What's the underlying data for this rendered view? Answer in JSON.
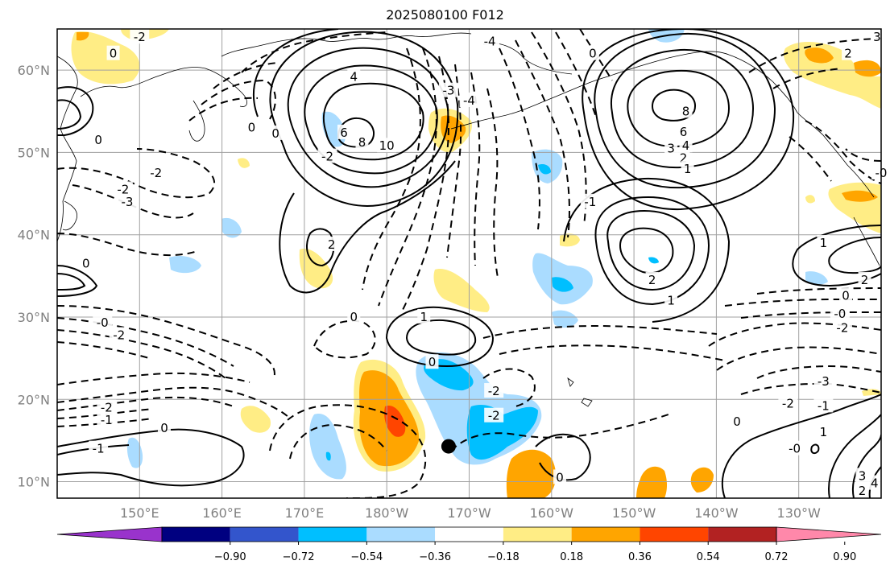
{
  "title": "2025080100 F012",
  "map": {
    "lat_labels": [
      "60°N",
      "50°N",
      "40°N",
      "30°N",
      "20°N",
      "10°N"
    ],
    "lon_labels": [
      "150°E",
      "160°E",
      "170°E",
      "180°W",
      "170°W",
      "160°W",
      "150°W",
      "140°W",
      "130°W"
    ],
    "lat_values": [
      60,
      50,
      40,
      30,
      20,
      10
    ],
    "lon_values": [
      150,
      160,
      170,
      180,
      190,
      200,
      210,
      220,
      230
    ],
    "lon_range": [
      140,
      240
    ],
    "lat_range": [
      8,
      65
    ],
    "grid": true,
    "marker": {
      "lon": 187.5,
      "lat": 14.3,
      "color": "#000000"
    }
  },
  "colorbar": {
    "ticks": [
      "−0.90",
      "−0.72",
      "−0.54",
      "−0.36",
      "−0.18",
      "0.18",
      "0.36",
      "0.54",
      "0.72",
      "0.90"
    ],
    "colors": [
      "#9933cc",
      "#000080",
      "#3355cc",
      "#00bfff",
      "#aadcff",
      "#ffffff",
      "#ffed85",
      "#ffa500",
      "#ff4500",
      "#b22222",
      "#ff88aa"
    ]
  },
  "contour_labels": [
    {
      "t": "4",
      "lon": 176.0,
      "lat": 59.2
    },
    {
      "t": "6",
      "lon": 174.8,
      "lat": 52.4
    },
    {
      "t": "8",
      "lon": 177.0,
      "lat": 51.2
    },
    {
      "t": "10",
      "lon": 180.0,
      "lat": 50.8
    },
    {
      "t": "0",
      "lon": 166.5,
      "lat": 52.3
    },
    {
      "t": "0",
      "lon": 163.6,
      "lat": 53.0
    },
    {
      "t": "2",
      "lon": 173.3,
      "lat": 38.8
    },
    {
      "t": "-2",
      "lon": 172.8,
      "lat": 49.5
    },
    {
      "t": "-3",
      "lon": 187.5,
      "lat": 57.5
    },
    {
      "t": "-4",
      "lon": 190.0,
      "lat": 56.3
    },
    {
      "t": "-4",
      "lon": 192.5,
      "lat": 63.5
    },
    {
      "t": "0",
      "lon": 205.0,
      "lat": 62.0
    },
    {
      "t": "8",
      "lon": 216.3,
      "lat": 55.0
    },
    {
      "t": "6",
      "lon": 216.0,
      "lat": 52.5
    },
    {
      "t": "4",
      "lon": 216.3,
      "lat": 50.8
    },
    {
      "t": "3",
      "lon": 214.5,
      "lat": 50.5
    },
    {
      "t": "2",
      "lon": 216.0,
      "lat": 49.3
    },
    {
      "t": "1",
      "lon": 216.5,
      "lat": 48.0
    },
    {
      "t": "2",
      "lon": 212.2,
      "lat": 34.5
    },
    {
      "t": "1",
      "lon": 214.5,
      "lat": 32.0
    },
    {
      "t": "1",
      "lon": 184.5,
      "lat": 30.0
    },
    {
      "t": "0",
      "lon": 176.0,
      "lat": 30.0
    },
    {
      "t": "0",
      "lon": 185.5,
      "lat": 24.5
    },
    {
      "t": "-1",
      "lon": 204.7,
      "lat": 44.0
    },
    {
      "t": "-2",
      "lon": 193.0,
      "lat": 21.0
    },
    {
      "t": "-2",
      "lon": 193.0,
      "lat": 18.0
    },
    {
      "t": "0",
      "lon": 153.0,
      "lat": 16.5
    },
    {
      "t": "-1",
      "lon": 145.0,
      "lat": 14.0
    },
    {
      "t": "-2",
      "lon": 146.0,
      "lat": 19.0
    },
    {
      "t": "-1",
      "lon": 146.0,
      "lat": 17.5
    },
    {
      "t": "0",
      "lon": 201.0,
      "lat": 10.5
    },
    {
      "t": "-0",
      "lon": 229.5,
      "lat": 14.0
    },
    {
      "t": "1",
      "lon": 233.0,
      "lat": 16.0
    },
    {
      "t": "3",
      "lon": 237.7,
      "lat": 10.7
    },
    {
      "t": "4",
      "lon": 239.2,
      "lat": 9.8
    },
    {
      "t": "2",
      "lon": 237.7,
      "lat": 8.9
    },
    {
      "t": "0",
      "lon": 222.5,
      "lat": 17.3
    },
    {
      "t": "-3",
      "lon": 233.0,
      "lat": 22.2
    },
    {
      "t": "-2",
      "lon": 228.7,
      "lat": 19.5
    },
    {
      "t": "-1",
      "lon": 233.0,
      "lat": 19.2
    },
    {
      "t": "-0",
      "lon": 235.0,
      "lat": 30.4
    },
    {
      "t": "-2",
      "lon": 235.3,
      "lat": 28.7
    },
    {
      "t": "0",
      "lon": 235.7,
      "lat": 32.6
    },
    {
      "t": "2",
      "lon": 238.0,
      "lat": 34.5
    },
    {
      "t": "1",
      "lon": 233.0,
      "lat": 39.0
    },
    {
      "t": "0",
      "lon": 145.0,
      "lat": 51.5
    },
    {
      "t": "-2",
      "lon": 152.0,
      "lat": 47.5
    },
    {
      "t": "-2",
      "lon": 148.0,
      "lat": 45.5
    },
    {
      "t": "-3",
      "lon": 148.5,
      "lat": 44.0
    },
    {
      "t": "0",
      "lon": 143.5,
      "lat": 36.5
    },
    {
      "t": "-0",
      "lon": 145.5,
      "lat": 29.3
    },
    {
      "t": "-2",
      "lon": 147.5,
      "lat": 27.8
    },
    {
      "t": "-2",
      "lon": 150.0,
      "lat": 64.0
    },
    {
      "t": "0",
      "lon": 146.8,
      "lat": 62.0
    },
    {
      "t": "2",
      "lon": 236.0,
      "lat": 62.0
    },
    {
      "t": "3",
      "lon": 239.5,
      "lat": 64.0
    },
    {
      "t": "-0",
      "lon": 240.0,
      "lat": 47.5
    }
  ]
}
